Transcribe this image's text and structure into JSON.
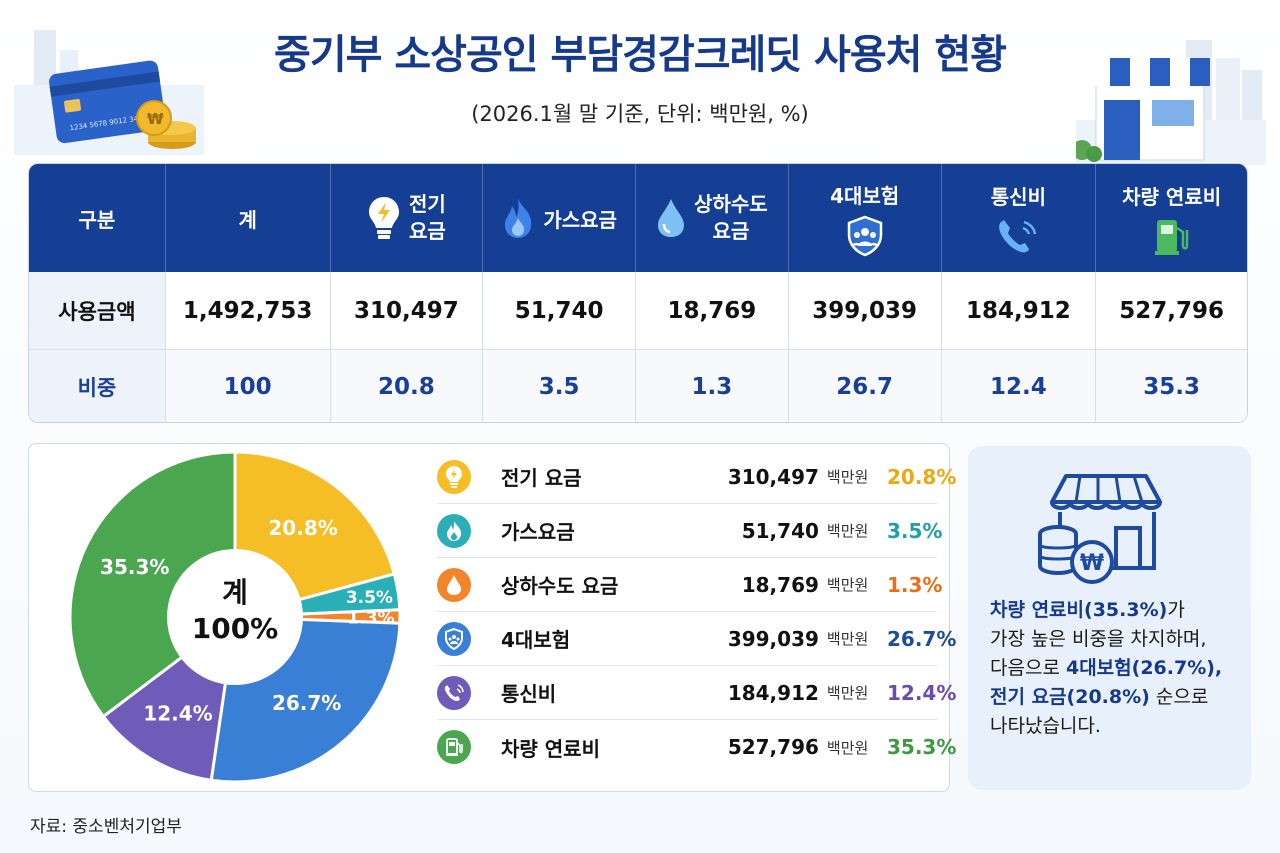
{
  "title": "중기부 소상공인 부담경감크레딧 사용처 현황",
  "subtitle": "(2026.1월 말 기준, 단위: 백만원, %)",
  "table": {
    "header_label": "구분",
    "total_label": "계",
    "columns": [
      {
        "label": "전기",
        "label2": "요금",
        "icon": "lightbulb-icon"
      },
      {
        "label": "가스요금",
        "label2": "",
        "icon": "flame-icon"
      },
      {
        "label": "상하수도",
        "label2": "요금",
        "icon": "water-drop-icon"
      },
      {
        "label": "4대보험",
        "label2": "",
        "icon": "insurance-shield-icon"
      },
      {
        "label": "통신비",
        "label2": "",
        "icon": "phone-icon"
      },
      {
        "label": "차량 연료비",
        "label2": "",
        "icon": "fuel-pump-icon"
      }
    ],
    "amount_row": {
      "label": "사용금액",
      "total": "1,492,753",
      "values": [
        "310,497",
        "51,740",
        "18,769",
        "399,039",
        "184,912",
        "527,796"
      ]
    },
    "share_row": {
      "label": "비중",
      "total": "100",
      "values": [
        "20.8",
        "3.5",
        "1.3",
        "26.7",
        "12.4",
        "35.3"
      ]
    }
  },
  "chart_data": {
    "type": "pie",
    "center_label": "계",
    "center_value": "100%",
    "slices": [
      {
        "name": "전기 요금",
        "value": 20.8,
        "amount": "310,497",
        "color": "#f5bd26",
        "icon": "lightbulb-icon"
      },
      {
        "name": "가스요금",
        "value": 3.5,
        "amount": "51,740",
        "color": "#2bafb7",
        "icon": "flame-icon"
      },
      {
        "name": "상하수도 요금",
        "value": 1.3,
        "amount": "18,769",
        "color": "#f2852a",
        "icon": "water-drop-icon"
      },
      {
        "name": "4대보험",
        "value": 26.7,
        "amount": "399,039",
        "color": "#3a7fd6",
        "icon": "insurance-shield-icon"
      },
      {
        "name": "통신비",
        "value": 12.4,
        "amount": "184,912",
        "color": "#6f5bb8",
        "icon": "phone-icon"
      },
      {
        "name": "차량 연료비",
        "value": 35.3,
        "amount": "527,796",
        "color": "#4aa64f",
        "icon": "fuel-pump-icon"
      }
    ],
    "slice_labels": [
      "20.8%",
      "3.5%",
      "1.3%",
      "26.7%",
      "12.4%",
      "35.3%"
    ],
    "pct_labels": [
      "20.8%",
      "3.5%",
      "1.3%",
      "26.7%",
      "12.4%",
      "35.3%"
    ],
    "pct_colors": [
      "#e8a915",
      "#1f9fa6",
      "#e86f15",
      "#1f4c9a",
      "#6a4cae",
      "#3d9a42"
    ],
    "unit": "백만원"
  },
  "note": {
    "line1a": "차량 연료비(35.3%)",
    "line1b": "가",
    "line2": "가장 높은 비중을 차지하며,",
    "line3a": "다음으로 ",
    "line3b": "4대보험(26.7%),",
    "line4a": "전기 요금(20.8%)",
    "line4b": " 순으로",
    "line5": "나타났습니다."
  },
  "source": "자료: 중소벤처기업부"
}
